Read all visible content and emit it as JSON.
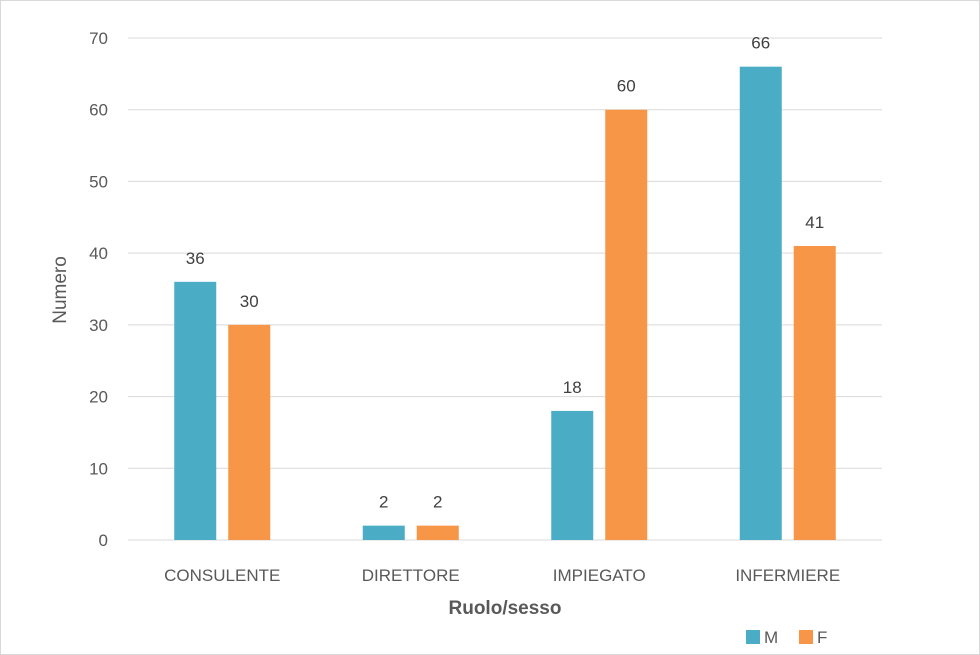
{
  "chart_data": {
    "type": "bar",
    "title": "",
    "xlabel": "Ruolo/sesso",
    "ylabel": "Numero",
    "categories": [
      "CONSULENTE",
      "DIRETTORE",
      "IMPIEGATO",
      "INFERMIERE"
    ],
    "series": [
      {
        "name": "M",
        "values": [
          36,
          2,
          18,
          66
        ],
        "color": "#4BACC6"
      },
      {
        "name": "F",
        "values": [
          30,
          2,
          60,
          41
        ],
        "color": "#F79646"
      }
    ],
    "ylim": [
      0,
      70
    ],
    "yticks": [
      "0",
      "10",
      "20",
      "30",
      "40",
      "50",
      "60",
      "70"
    ],
    "grid": true,
    "legend_position": "bottom-right",
    "data_labels": true
  }
}
